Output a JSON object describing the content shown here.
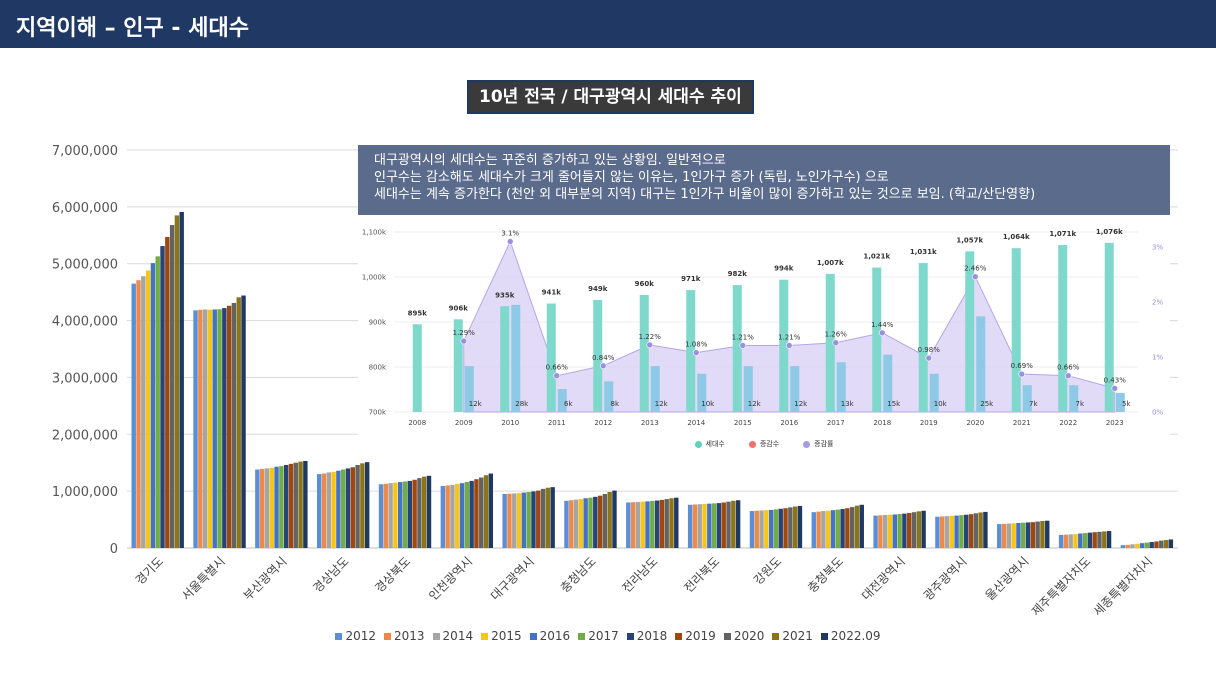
{
  "header": {
    "title": "지역이해 – 인구 - 세대수"
  },
  "chart_title": "10년 전국 / 대구광역시 세대수 추이",
  "note": {
    "lines": [
      "대구광역시의 세대수는 꾸준히 증가하고 있는 상황임. 일반적으로",
      "인구수는 감소해도 세대수가 크게 줄어들지 않는 이유는, 1인가구 증가 (독립, 노인가구수) 으로",
      "세대수는 계속 증가한다 (천안 외 대부분의 지역) 대구는 1인가구 비율이 많이 증가하고 있는 것으로 보임. (학교/산단영향)"
    ]
  },
  "chart_data": [
    {
      "type": "bar",
      "title": "",
      "ylim": [
        0,
        7000000
      ],
      "yticks": [
        "0",
        "1,000,000",
        "2,000,000",
        "3,000,000",
        "4,000,000",
        "5,000,000",
        "6,000,000",
        "7,000,000"
      ],
      "grid": true,
      "legend": "bottom",
      "categories": [
        "경기도",
        "서울특별시",
        "부산광역시",
        "경상남도",
        "경상북도",
        "인천광역시",
        "대구광역시",
        "충청남도",
        "전라남도",
        "전라북도",
        "강원도",
        "충청북도",
        "대전광역시",
        "광주광역시",
        "울산광역시",
        "제주특별자치도",
        "세종특별자치시"
      ],
      "series": [
        {
          "name": "2012",
          "color": "#5b8ed6",
          "values": [
            4650000,
            4180000,
            1380000,
            1300000,
            1120000,
            1090000,
            950000,
            830000,
            800000,
            760000,
            650000,
            630000,
            570000,
            550000,
            420000,
            230000,
            50000
          ]
        },
        {
          "name": "2013",
          "color": "#ed8a4a",
          "values": [
            4710000,
            4190000,
            1390000,
            1310000,
            1130000,
            1100000,
            955000,
            840000,
            805000,
            765000,
            655000,
            640000,
            575000,
            555000,
            425000,
            235000,
            55000
          ]
        },
        {
          "name": "2014",
          "color": "#a5a5a5",
          "values": [
            4780000,
            4195000,
            1400000,
            1330000,
            1140000,
            1110000,
            960000,
            850000,
            810000,
            770000,
            660000,
            650000,
            580000,
            560000,
            430000,
            240000,
            65000
          ]
        },
        {
          "name": "2015",
          "color": "#f5c518",
          "values": [
            4880000,
            4190000,
            1410000,
            1340000,
            1150000,
            1125000,
            965000,
            860000,
            815000,
            775000,
            665000,
            655000,
            585000,
            565000,
            435000,
            245000,
            75000
          ]
        },
        {
          "name": "2016",
          "color": "#4472c4",
          "values": [
            5010000,
            4195000,
            1430000,
            1360000,
            1160000,
            1140000,
            975000,
            875000,
            820000,
            780000,
            670000,
            665000,
            590000,
            570000,
            440000,
            255000,
            85000
          ]
        },
        {
          "name": "2017",
          "color": "#70ad47",
          "values": [
            5130000,
            4200000,
            1440000,
            1380000,
            1170000,
            1160000,
            985000,
            885000,
            828000,
            785000,
            680000,
            675000,
            598000,
            578000,
            445000,
            262000,
            95000
          ]
        },
        {
          "name": "2018",
          "color": "#264478",
          "values": [
            5310000,
            4220000,
            1460000,
            1400000,
            1180000,
            1180000,
            995000,
            900000,
            835000,
            790000,
            690000,
            685000,
            605000,
            585000,
            450000,
            270000,
            105000
          ]
        },
        {
          "name": "2019",
          "color": "#9e480e",
          "values": [
            5470000,
            4260000,
            1480000,
            1420000,
            1200000,
            1210000,
            1010000,
            920000,
            845000,
            800000,
            700000,
            700000,
            615000,
            595000,
            455000,
            278000,
            115000
          ]
        },
        {
          "name": "2020",
          "color": "#636363",
          "values": [
            5680000,
            4310000,
            1500000,
            1460000,
            1230000,
            1240000,
            1040000,
            950000,
            860000,
            815000,
            715000,
            720000,
            630000,
            610000,
            465000,
            285000,
            130000
          ]
        },
        {
          "name": "2021",
          "color": "#8a7618",
          "values": [
            5850000,
            4410000,
            1520000,
            1490000,
            1255000,
            1280000,
            1060000,
            985000,
            875000,
            830000,
            730000,
            745000,
            645000,
            625000,
            475000,
            292000,
            140000
          ]
        },
        {
          "name": "2022.09",
          "color": "#1f3864",
          "values": [
            5910000,
            4440000,
            1530000,
            1510000,
            1270000,
            1310000,
            1070000,
            1010000,
            885000,
            840000,
            740000,
            760000,
            655000,
            635000,
            480000,
            298000,
            150000
          ]
        }
      ]
    },
    {
      "type": "bar",
      "title": "",
      "grid": true,
      "legend": "bottom",
      "x": [
        "2008",
        "2009",
        "2010",
        "2011",
        "2012",
        "2013",
        "2014",
        "2015",
        "2016",
        "2017",
        "2018",
        "2019",
        "2020",
        "2021",
        "2022",
        "2023"
      ],
      "y_left_ticks": [
        "700k",
        "800k",
        "900k",
        "1,000k",
        "1,100k"
      ],
      "y_left_lim": [
        700000,
        1100000
      ],
      "y_right_ticks": [
        "0%",
        "1%",
        "2%",
        "3%"
      ],
      "y_right_lim": [
        0,
        3
      ],
      "series": [
        {
          "name": "세대수",
          "color": "#7fd8cc",
          "values": [
            895000,
            906000,
            935000,
            941000,
            949000,
            960000,
            971000,
            982000,
            994000,
            1007000,
            1021000,
            1031000,
            1057000,
            1064000,
            1071000,
            1076000
          ],
          "labels": [
            "895k",
            "906k",
            "935k",
            "941k",
            "949k",
            "960k",
            "971k",
            "982k",
            "994k",
            "1,007k",
            "1,021k",
            "1,031k",
            "1,057k",
            "1,064k",
            "1,071k",
            "1,076k"
          ]
        },
        {
          "name": "증감수",
          "color": "#8ec9e6",
          "values": [
            null,
            12000,
            28000,
            6000,
            8000,
            12000,
            10000,
            12000,
            12000,
            13000,
            15000,
            10000,
            25000,
            7000,
            7000,
            5000
          ],
          "labels": [
            "",
            "12k",
            "28k",
            "6k",
            "8k",
            "12k",
            "10k",
            "12k",
            "12k",
            "13k",
            "15k",
            "10k",
            "25k",
            "7k",
            "7k",
            "5k"
          ]
        },
        {
          "name": "증감률",
          "color": "#b3a6e8",
          "values": [
            null,
            1.29,
            3.1,
            0.66,
            0.84,
            1.22,
            1.08,
            1.21,
            1.21,
            1.26,
            1.44,
            0.98,
            2.46,
            0.69,
            0.66,
            0.43
          ],
          "labels": [
            "",
            "1.29%",
            "3.1%",
            "0.66%",
            "0.84%",
            "1.22%",
            "1.08%",
            "1.21%",
            "1.21%",
            "1.26%",
            "1.44%",
            "0.98%",
            "2.46%",
            "0.69%",
            "0.66%",
            "0.43%"
          ]
        }
      ],
      "legend_items": [
        {
          "name": "세대수",
          "color": "#5fcfc0"
        },
        {
          "name": "증감수",
          "color": "#f07070"
        },
        {
          "name": "증감률",
          "color": "#a79be6"
        }
      ]
    }
  ]
}
